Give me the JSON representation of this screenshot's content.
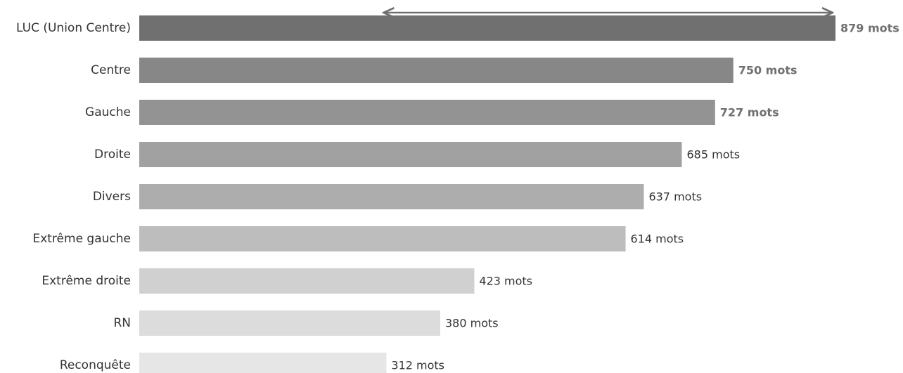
{
  "chart_data": {
    "type": "bar",
    "orientation": "horizontal",
    "title": "",
    "xlabel": "",
    "ylabel": "",
    "xlim": [
      0,
      879
    ],
    "grid": false,
    "categories": [
      "LUC (Union Centre)",
      "Centre",
      "Gauche",
      "Droite",
      "Divers",
      "Extrême gauche",
      "Extrême droite",
      "RN",
      "Reconquête"
    ],
    "values": [
      879,
      750,
      727,
      685,
      637,
      614,
      423,
      380,
      312
    ],
    "value_labels": [
      "879 mots",
      "750 mots",
      "727 mots",
      "685 mots",
      "637 mots",
      "614 mots",
      "423 mots",
      "380 mots",
      "312 mots"
    ],
    "bar_colors": [
      "#707070",
      "#878787",
      "#939393",
      "#a1a1a1",
      "#adadad",
      "#bdbdbd",
      "#d0d0d0",
      "#dcdcdc",
      "#e6e6e6"
    ],
    "value_label_colors": [
      "#707070",
      "#707070",
      "#707070",
      "#333333",
      "#333333",
      "#333333",
      "#333333",
      "#333333",
      "#333333"
    ],
    "value_label_bold": [
      true,
      true,
      true,
      false,
      false,
      false,
      false,
      false,
      false
    ],
    "annotation": {
      "type": "double-arrow",
      "from_value": 312,
      "to_value": 879,
      "color": "#707070"
    }
  }
}
